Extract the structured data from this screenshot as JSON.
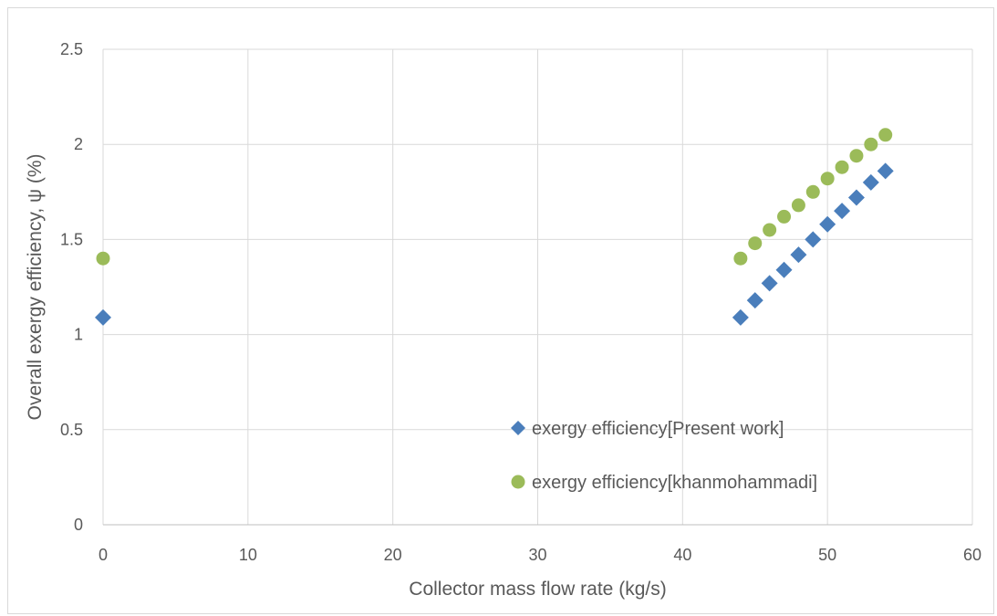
{
  "chart_data": {
    "type": "scatter",
    "xlabel": "Collector mass flow rate (kg/s)",
    "ylabel": "Overall exergy efficiency, ψ (%)",
    "xlim": [
      0,
      60
    ],
    "ylim": [
      0,
      2.5
    ],
    "xticks": [
      "0",
      "10",
      "20",
      "30",
      "40",
      "50",
      "60"
    ],
    "yticks": [
      "0",
      "0.5",
      "1",
      "1.5",
      "2",
      "2.5"
    ],
    "grid": true,
    "legend_position": "lower-right-inside",
    "series": [
      {
        "name": "exergy efficiency[Present work]",
        "marker": "diamond",
        "color": "#4a7ebb",
        "x": [
          0,
          44,
          45,
          46,
          47,
          48,
          49,
          50,
          51,
          52,
          53,
          54
        ],
        "y": [
          1.09,
          1.09,
          1.18,
          1.27,
          1.34,
          1.42,
          1.5,
          1.58,
          1.65,
          1.72,
          1.8,
          1.86
        ]
      },
      {
        "name": "exergy efficiency[khanmohammadi]",
        "marker": "circle",
        "color": "#9bbb59",
        "x": [
          0,
          44,
          45,
          46,
          47,
          48,
          49,
          50,
          51,
          52,
          53,
          54
        ],
        "y": [
          1.4,
          1.4,
          1.48,
          1.55,
          1.62,
          1.68,
          1.75,
          1.82,
          1.88,
          1.94,
          2.0,
          2.05
        ]
      }
    ]
  }
}
